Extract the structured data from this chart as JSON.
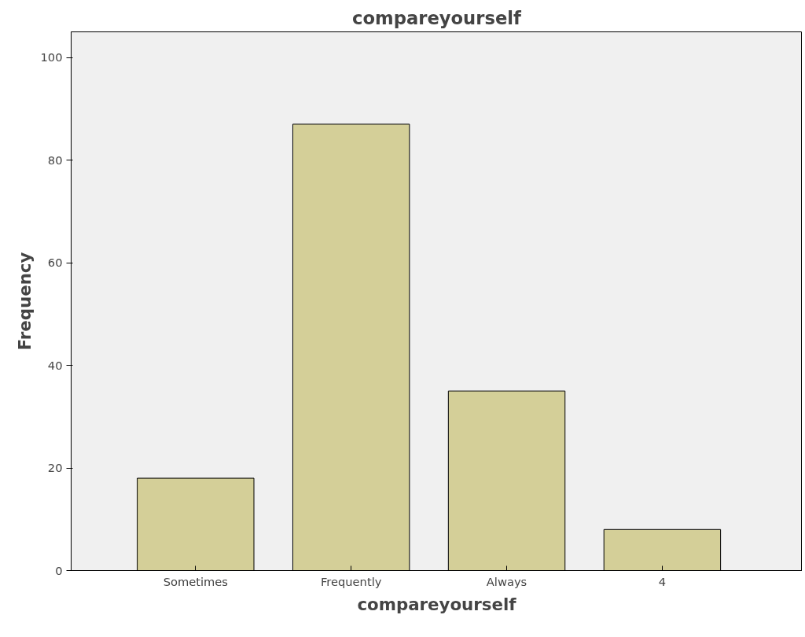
{
  "chart_data": {
    "type": "bar",
    "title": "compareyourself",
    "xlabel": "compareyourself",
    "ylabel": "Frequency",
    "categories": [
      "Sometimes",
      "Frequently",
      "Always",
      "4"
    ],
    "values": [
      18,
      87,
      35,
      8
    ],
    "color": "#d4cf98",
    "ylim": [
      0,
      105
    ],
    "yticks": [
      0,
      20,
      40,
      60,
      80,
      100
    ],
    "grid": false
  }
}
